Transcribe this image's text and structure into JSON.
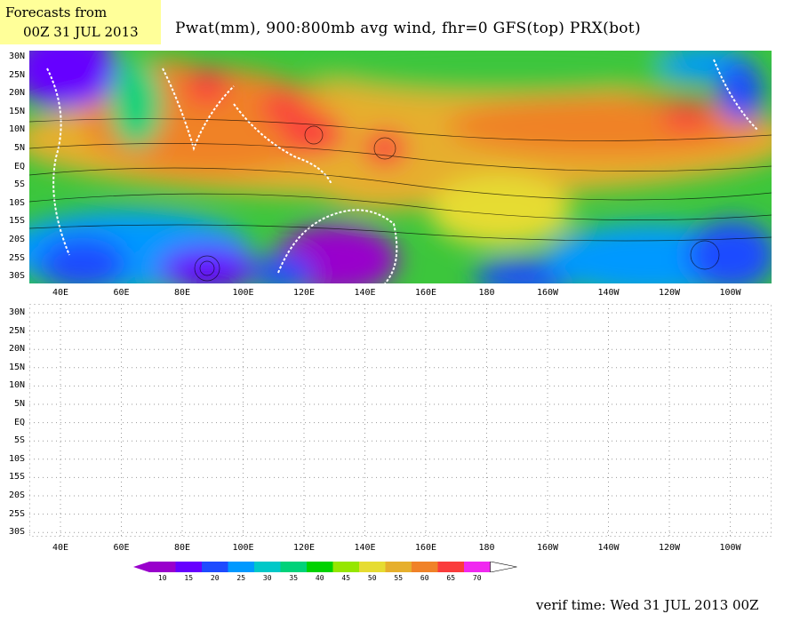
{
  "header": {
    "forecast_line1": "Forecasts from",
    "forecast_line2": "00Z 31 JUL 2013",
    "title": "Pwat(mm), 900:800mb avg wind, fhr=0 GFS(top) PRX(bot)"
  },
  "axes": {
    "lat_labels": [
      "30N",
      "25N",
      "20N",
      "15N",
      "10N",
      "5N",
      "EQ",
      "5S",
      "10S",
      "15S",
      "20S",
      "25S",
      "30S"
    ],
    "lon_labels": [
      "40E",
      "60E",
      "80E",
      "100E",
      "120E",
      "140E",
      "160E",
      "180",
      "160W",
      "140W",
      "120W",
      "100W"
    ]
  },
  "colorbar": {
    "labels": [
      "10",
      "15",
      "20",
      "25",
      "30",
      "35",
      "40",
      "45",
      "50",
      "55",
      "60",
      "65",
      "70"
    ],
    "colors": [
      "#9900cc",
      "#6600ff",
      "#1e4bff",
      "#0099ff",
      "#00c8c8",
      "#00d27a",
      "#00d200",
      "#96e600",
      "#e6dc32",
      "#e6af2d",
      "#f08228",
      "#fa3c3c",
      "#f028f0"
    ]
  },
  "panels": {
    "top": "GFS",
    "bottom": "PRX"
  },
  "footer": {
    "verif_time": "verif time: Wed 31 JUL 2013 00Z"
  }
}
